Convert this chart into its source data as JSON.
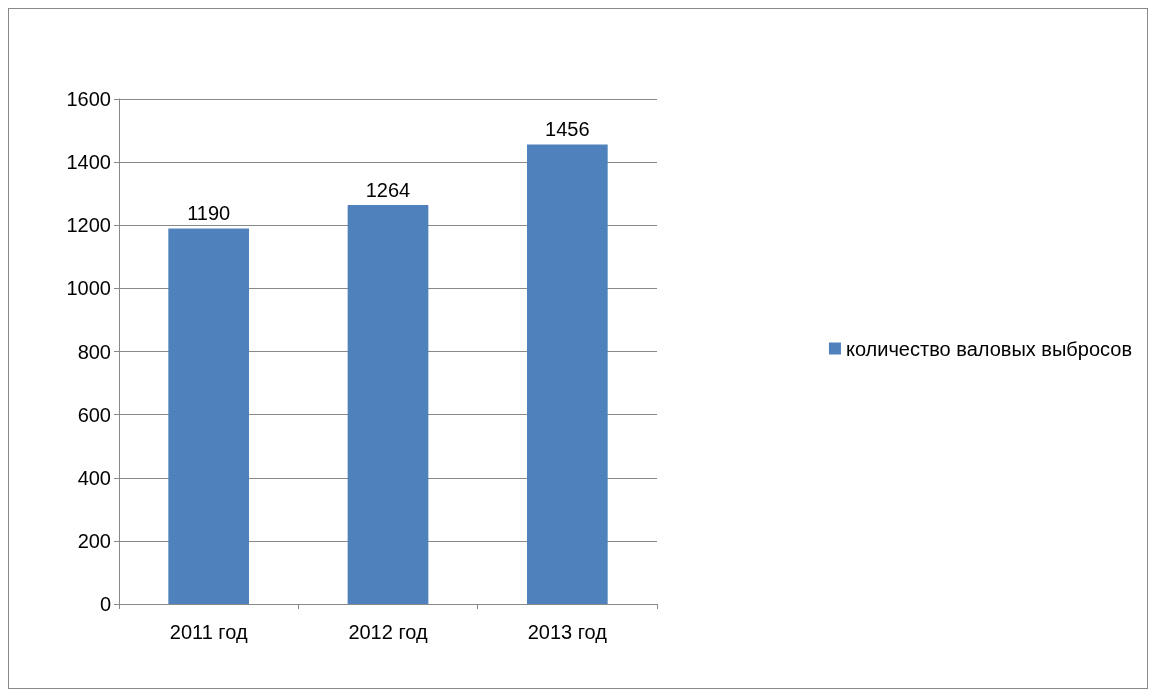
{
  "chart_data": {
    "type": "bar",
    "categories": [
      "2011 год",
      "2012 год",
      "2013 год"
    ],
    "series": [
      {
        "name": "количество валовых выбросов",
        "color": "#4f81bd",
        "values": [
          1190,
          1264,
          1456
        ]
      }
    ],
    "ylim": [
      0,
      1600
    ],
    "yticks": [
      0,
      200,
      400,
      600,
      800,
      1000,
      1200,
      1400,
      1600
    ],
    "grid": "y",
    "legend": "right",
    "data_labels": true
  }
}
